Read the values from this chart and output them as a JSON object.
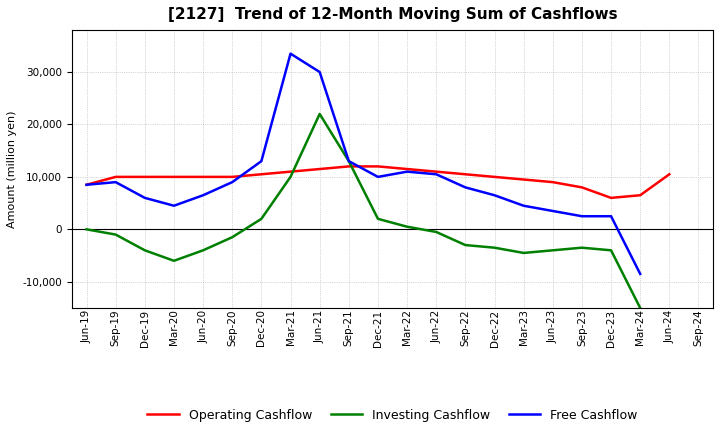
{
  "title": "[2127]  Trend of 12-Month Moving Sum of Cashflows",
  "ylabel": "Amount (million yen)",
  "x_labels": [
    "Jun-19",
    "Sep-19",
    "Dec-19",
    "Mar-20",
    "Jun-20",
    "Sep-20",
    "Dec-20",
    "Mar-21",
    "Jun-21",
    "Sep-21",
    "Dec-21",
    "Mar-22",
    "Jun-22",
    "Sep-22",
    "Dec-22",
    "Mar-23",
    "Jun-23",
    "Sep-23",
    "Dec-23",
    "Mar-24",
    "Jun-24",
    "Sep-24"
  ],
  "operating_cashflow": [
    8500,
    10000,
    10000,
    10000,
    10000,
    10000,
    10500,
    11000,
    11500,
    12000,
    12000,
    11500,
    11000,
    10500,
    10000,
    9500,
    9000,
    8000,
    6000,
    6500,
    10500,
    null
  ],
  "investing_cashflow": [
    0,
    -1000,
    -4000,
    -6000,
    -4000,
    -1500,
    2000,
    10000,
    22000,
    13000,
    2000,
    500,
    -500,
    -3000,
    -3500,
    -4500,
    -4000,
    -3500,
    -4000,
    -15000,
    null,
    null
  ],
  "free_cashflow": [
    8500,
    9000,
    6000,
    4500,
    6500,
    9000,
    13000,
    33500,
    30000,
    13000,
    10000,
    11000,
    10500,
    8000,
    6500,
    4500,
    3500,
    2500,
    2500,
    -8500,
    null,
    null
  ],
  "operating_color": "#ff0000",
  "investing_color": "#008000",
  "free_color": "#0000ff",
  "background_color": "#ffffff",
  "grid_color": "#b0b0b0",
  "ylim": [
    -15000,
    38000
  ],
  "yticks": [
    -10000,
    0,
    10000,
    20000,
    30000
  ],
  "linewidth": 1.8,
  "title_fontsize": 11,
  "label_fontsize": 8,
  "tick_fontsize": 7.5,
  "legend_fontsize": 9
}
